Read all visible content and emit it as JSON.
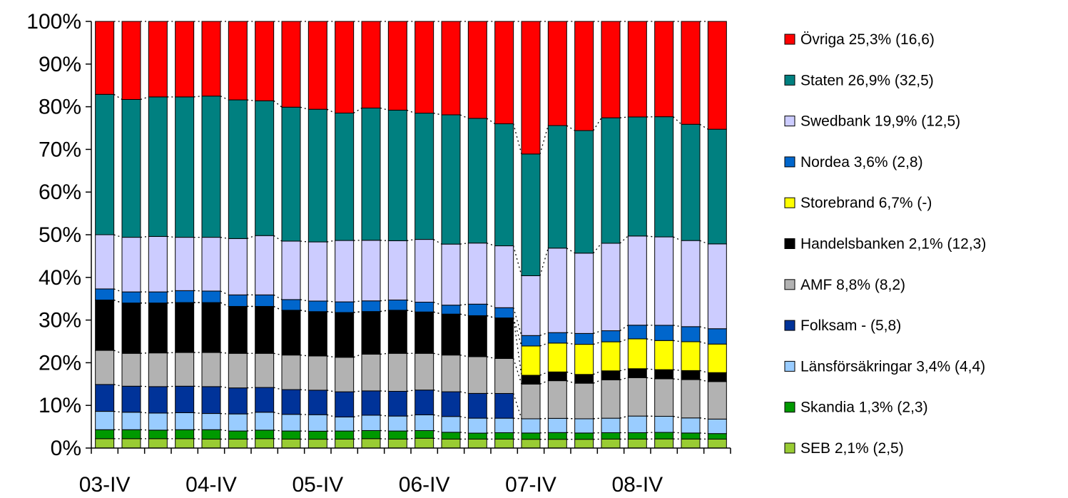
{
  "chart_data": {
    "type": "bar",
    "stacked": true,
    "normalized": true,
    "x": [
      "03-IV",
      "",
      "",
      "",
      "04-IV",
      "",
      "",
      "",
      "05-IV",
      "",
      "",
      "",
      "06-IV",
      "",
      "",
      "",
      "07-IV",
      "",
      "",
      "",
      "08-IV",
      "",
      "",
      ""
    ],
    "x_tick_labels": [
      "03-IV",
      "04-IV",
      "05-IV",
      "06-IV",
      "07-IV",
      "08-IV"
    ],
    "y_tick_labels": [
      "0%",
      "10%",
      "20%",
      "30%",
      "40%",
      "50%",
      "60%",
      "70%",
      "80%",
      "90%",
      "100%"
    ],
    "ylim": [
      0,
      100
    ],
    "grid": false,
    "legend_position": "right",
    "series_lines": "dotted connector lines between segment boundaries of adjacent bars",
    "series": [
      {
        "name": "SEB 2,1% (2,5)",
        "color": "#99CC33",
        "values": [
          2.2,
          2.2,
          2.2,
          2.2,
          2.1,
          2.1,
          2.2,
          2.1,
          2.1,
          2.1,
          2.2,
          2.1,
          2.3,
          2.1,
          2.1,
          2.1,
          2.1,
          2.1,
          2.1,
          2.1,
          2.1,
          2.1,
          2.1,
          2.1
        ]
      },
      {
        "name": "Skandia 1,3% (2,3)",
        "color": "#009900",
        "values": [
          2.1,
          2.1,
          2.0,
          2.1,
          2.2,
          1.9,
          2.0,
          1.9,
          1.9,
          1.9,
          1.9,
          1.9,
          1.8,
          1.6,
          1.4,
          1.5,
          1.5,
          1.6,
          1.5,
          1.5,
          1.5,
          1.5,
          1.4,
          1.3
        ]
      },
      {
        "name": "Länsförsäkringar 3,4% (4,4)",
        "color": "#99CCFF",
        "values": [
          4.3,
          4.1,
          4.0,
          4.0,
          3.8,
          4.0,
          4.2,
          3.9,
          3.9,
          3.3,
          3.6,
          3.5,
          3.7,
          3.7,
          3.5,
          3.4,
          3.4,
          3.4,
          3.4,
          3.4,
          3.9,
          3.7,
          3.5,
          3.4
        ]
      },
      {
        "name": "Folksam - (5,8)",
        "color": "#003399",
        "values": [
          6.3,
          6.1,
          6.2,
          6.2,
          6.3,
          6.1,
          5.8,
          5.8,
          5.8,
          5.9,
          5.7,
          5.8,
          5.8,
          5.8,
          5.8,
          5.8,
          0,
          0,
          0,
          0,
          0,
          0,
          0,
          0
        ]
      },
      {
        "name": "AMF 8,8% (8,2)",
        "color": "#B2B2B2",
        "values": [
          8.0,
          7.7,
          7.9,
          7.9,
          8.0,
          8.1,
          8.0,
          8.1,
          8.1,
          8.1,
          8.6,
          8.9,
          8.6,
          8.6,
          8.6,
          8.2,
          8.3,
          9.0,
          8.5,
          9.0,
          9.0,
          8.6,
          8.9,
          8.8
        ]
      },
      {
        "name": "Handelsbanken 2,1% (12,3)",
        "color": "#000000",
        "values": [
          11.8,
          11.8,
          11.7,
          11.7,
          11.7,
          11.0,
          11.0,
          10.5,
          10.5,
          10.5,
          10.0,
          10.1,
          9.7,
          9.6,
          9.6,
          9.5,
          2.1,
          2.1,
          2.1,
          2.1,
          2.1,
          2.1,
          2.1,
          2.1
        ]
      },
      {
        "name": "Storebrand 6,7% (-)",
        "color": "#FFFF00",
        "values": [
          0,
          0,
          0,
          0,
          0,
          0,
          0,
          0,
          0,
          0,
          0,
          0,
          0,
          0,
          0,
          0,
          7.0,
          6.9,
          7.2,
          6.8,
          7.0,
          6.7,
          6.7,
          6.7
        ]
      },
      {
        "name": "Nordea 3,6% (2,8)",
        "color": "#0066CC",
        "values": [
          2.6,
          2.6,
          2.6,
          2.8,
          2.7,
          2.7,
          2.7,
          2.5,
          2.5,
          2.5,
          2.5,
          2.4,
          2.3,
          2.1,
          2.7,
          2.4,
          2.5,
          2.5,
          2.6,
          2.6,
          3.2,
          3.5,
          3.5,
          3.6
        ]
      },
      {
        "name": "Swedbank 19,9% (12,5)",
        "color": "#CCCCFF",
        "values": [
          12.7,
          12.8,
          13.0,
          12.5,
          12.6,
          13.2,
          13.9,
          13.7,
          14.0,
          14.4,
          14.2,
          13.9,
          14.7,
          14.3,
          14.3,
          14.5,
          14.3,
          20.2,
          19.2,
          20.5,
          20.9,
          20.3,
          20.0,
          19.9
        ]
      },
      {
        "name": "Staten 26,9% (32,5)",
        "color": "#008080",
        "values": [
          32.9,
          32.3,
          32.7,
          32.9,
          33.1,
          32.5,
          31.6,
          31.4,
          31.4,
          29.9,
          31.0,
          30.6,
          29.6,
          30.3,
          29.2,
          28.6,
          29.1,
          29.3,
          29.3,
          29.4,
          27.9,
          27.6,
          27.0,
          26.9
        ]
      },
      {
        "name": "Övriga 25,3% (16,6)",
        "color": "#FF0000",
        "values": [
          17.1,
          18.3,
          17.7,
          17.7,
          17.5,
          18.4,
          18.6,
          20.1,
          20.8,
          21.5,
          20.3,
          20.8,
          21.5,
          21.9,
          22.7,
          24.0,
          31.7,
          24.9,
          26.1,
          22.6,
          22.4,
          21.9,
          23.9,
          25.3
        ]
      }
    ]
  }
}
